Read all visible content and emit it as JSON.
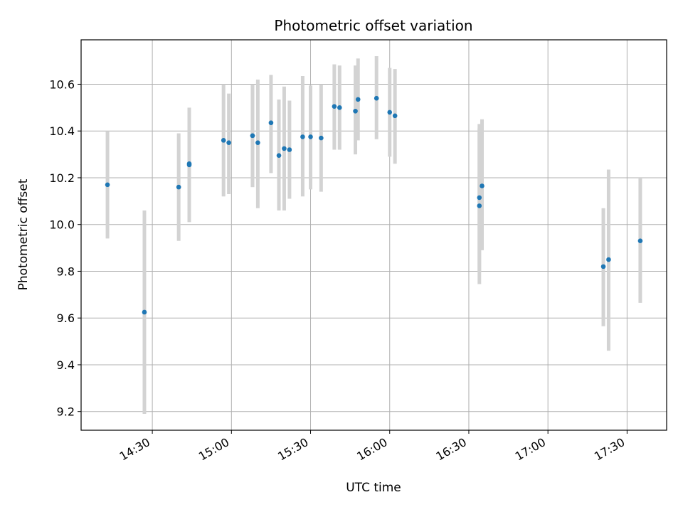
{
  "chart_data": {
    "type": "scatter",
    "title": "Photometric offset variation",
    "xlabel": "UTC time",
    "ylabel": "Photometric offset",
    "x_unit": "HH:MM (UTC)",
    "xlim": [
      "14:03",
      "17:45"
    ],
    "ylim": [
      9.12,
      10.79
    ],
    "x_ticks": [
      "14:30",
      "15:00",
      "15:30",
      "16:00",
      "16:30",
      "17:00",
      "17:30"
    ],
    "y_ticks": [
      9.2,
      9.4,
      9.6,
      9.8,
      10.0,
      10.2,
      10.4,
      10.6
    ],
    "grid": true,
    "colors": {
      "point": "#1f77b4",
      "errorbar": "#d3d3d3",
      "grid": "#b0b0b0"
    },
    "points": [
      {
        "x": "14:13",
        "y": 10.17,
        "ylow": 9.94,
        "yhigh": 10.4
      },
      {
        "x": "14:27",
        "y": 9.625,
        "ylow": 9.19,
        "yhigh": 10.06
      },
      {
        "x": "14:40",
        "y": 10.16,
        "ylow": 9.93,
        "yhigh": 10.39
      },
      {
        "x": "14:44",
        "y": 10.26,
        "ylow": 10.02,
        "yhigh": 10.5
      },
      {
        "x": "14:44",
        "y": 10.255,
        "ylow": 10.01,
        "yhigh": 10.49
      },
      {
        "x": "14:57",
        "y": 10.36,
        "ylow": 10.12,
        "yhigh": 10.6
      },
      {
        "x": "14:59",
        "y": 10.35,
        "ylow": 10.13,
        "yhigh": 10.56
      },
      {
        "x": "15:08",
        "y": 10.38,
        "ylow": 10.16,
        "yhigh": 10.6
      },
      {
        "x": "15:08",
        "y": 10.38,
        "ylow": 10.16,
        "yhigh": 10.6
      },
      {
        "x": "15:10",
        "y": 10.35,
        "ylow": 10.07,
        "yhigh": 10.62
      },
      {
        "x": "15:15",
        "y": 10.435,
        "ylow": 10.22,
        "yhigh": 10.64
      },
      {
        "x": "15:18",
        "y": 10.295,
        "ylow": 10.06,
        "yhigh": 10.535
      },
      {
        "x": "15:20",
        "y": 10.325,
        "ylow": 10.06,
        "yhigh": 10.59
      },
      {
        "x": "15:22",
        "y": 10.32,
        "ylow": 10.11,
        "yhigh": 10.53
      },
      {
        "x": "15:27",
        "y": 10.375,
        "ylow": 10.12,
        "yhigh": 10.635
      },
      {
        "x": "15:30",
        "y": 10.375,
        "ylow": 10.15,
        "yhigh": 10.595
      },
      {
        "x": "15:34",
        "y": 10.37,
        "ylow": 10.14,
        "yhigh": 10.6
      },
      {
        "x": "15:39",
        "y": 10.505,
        "ylow": 10.32,
        "yhigh": 10.685
      },
      {
        "x": "15:41",
        "y": 10.5,
        "ylow": 10.32,
        "yhigh": 10.68
      },
      {
        "x": "15:47",
        "y": 10.485,
        "ylow": 10.3,
        "yhigh": 10.68
      },
      {
        "x": "15:48",
        "y": 10.535,
        "ylow": 10.36,
        "yhigh": 10.71
      },
      {
        "x": "15:55",
        "y": 10.54,
        "ylow": 10.365,
        "yhigh": 10.72
      },
      {
        "x": "16:00",
        "y": 10.48,
        "ylow": 10.29,
        "yhigh": 10.67
      },
      {
        "x": "16:02",
        "y": 10.465,
        "ylow": 10.26,
        "yhigh": 10.665
      },
      {
        "x": "16:34",
        "y": 10.115,
        "ylow": 9.8,
        "yhigh": 10.43
      },
      {
        "x": "16:34",
        "y": 10.08,
        "ylow": 9.745,
        "yhigh": 10.41
      },
      {
        "x": "16:35",
        "y": 10.165,
        "ylow": 9.89,
        "yhigh": 10.45
      },
      {
        "x": "17:21",
        "y": 9.82,
        "ylow": 9.565,
        "yhigh": 10.07
      },
      {
        "x": "17:23",
        "y": 9.85,
        "ylow": 9.46,
        "yhigh": 10.235
      },
      {
        "x": "17:35",
        "y": 9.93,
        "ylow": 9.665,
        "yhigh": 10.2
      }
    ]
  }
}
